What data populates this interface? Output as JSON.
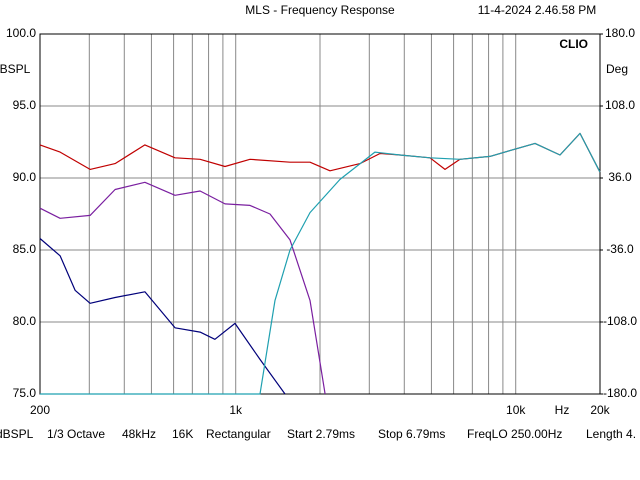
{
  "chart_data": {
    "type": "line",
    "title": "MLS - Frequency Response",
    "timestamp": "11-4-2024 2.46.58 PM",
    "brand": "CLIO",
    "xlabel": "Hz",
    "ylabel": "dBSPL",
    "y2label": "Deg",
    "xscale": "log",
    "xlim": [
      200,
      20000
    ],
    "xticks": [
      200,
      {
        "value": 1000,
        "label": "1k"
      },
      {
        "value": 10000,
        "label": "10k"
      },
      {
        "value": 20000,
        "label": "20k"
      }
    ],
    "xminor": [
      300,
      400,
      500,
      600,
      700,
      800,
      900,
      2000,
      3000,
      4000,
      5000,
      6000,
      7000,
      8000,
      9000
    ],
    "ylim": [
      75,
      100
    ],
    "yticks": [
      {
        "value": 75,
        "label": "75.0"
      },
      {
        "value": 80,
        "label": "80.0"
      },
      {
        "value": 85,
        "label": "85.0"
      },
      {
        "value": 90,
        "label": "90.0"
      },
      {
        "value": 95,
        "label": "95.0"
      },
      {
        "value": 100,
        "label": "100.0"
      }
    ],
    "y2lim": [
      -180,
      180
    ],
    "y2ticks": [
      {
        "value": -180,
        "label": "-180.0"
      },
      {
        "value": -108,
        "label": "-108.0"
      },
      {
        "value": -36,
        "label": "-36.0"
      },
      {
        "value": 36,
        "label": "36.0"
      },
      {
        "value": 108,
        "label": "108.0"
      },
      {
        "value": 180,
        "label": "180.0"
      }
    ],
    "grid": true,
    "series": [
      {
        "color": "#c00000",
        "x": [
          200,
          236,
          302,
          371,
          474,
          607,
          746,
          916,
          1125,
          1563,
          1842,
          2171,
          2779,
          3276,
          3861,
          4941,
          5590,
          6325,
          8094,
          9541,
          11720,
          14390,
          16970,
          20000
        ],
        "values": [
          92.3,
          91.8,
          90.6,
          91.0,
          92.3,
          91.4,
          91.3,
          90.8,
          91.3,
          91.1,
          91.1,
          90.5,
          91.0,
          91.7,
          91.6,
          91.4,
          90.6,
          91.3,
          91.5,
          91.9,
          92.4,
          91.6,
          93.1,
          90.4
        ]
      },
      {
        "color": "#7a1fa0",
        "x": [
          200,
          236,
          302,
          371,
          474,
          607,
          746,
          916,
          1125,
          1326,
          1563,
          1842,
          2085
        ],
        "values": [
          87.9,
          87.2,
          87.4,
          89.2,
          89.7,
          88.8,
          89.1,
          88.2,
          88.1,
          87.5,
          85.7,
          81.5,
          75
        ]
      },
      {
        "color": "#00007a",
        "x": [
          200,
          236,
          267,
          302,
          371,
          474,
          607,
          746,
          843,
          994,
          1221,
          1500
        ],
        "values": [
          85.8,
          84.6,
          82.2,
          81.3,
          81.7,
          82.1,
          79.6,
          79.3,
          78.8,
          79.9,
          77.4,
          75
        ]
      },
      {
        "color": "#1fa0b0",
        "x": [
          200,
          1221,
          1381,
          1563,
          1842,
          2357,
          3142,
          3861,
          4941,
          6325,
          8094,
          9541,
          11720,
          14390,
          16970,
          20000
        ],
        "values": [
          75,
          75,
          81.5,
          85,
          87.6,
          89.9,
          91.8,
          91.6,
          91.4,
          91.3,
          91.5,
          91.9,
          92.4,
          91.6,
          93.1,
          90.4
        ]
      }
    ],
    "footer": [
      "dBSPL",
      "1/3 Octave",
      "48kHz",
      "16K",
      "Rectangular",
      "Start 2.79ms",
      "Stop 6.79ms",
      "FreqLO 250.00Hz",
      "Length 4."
    ]
  }
}
